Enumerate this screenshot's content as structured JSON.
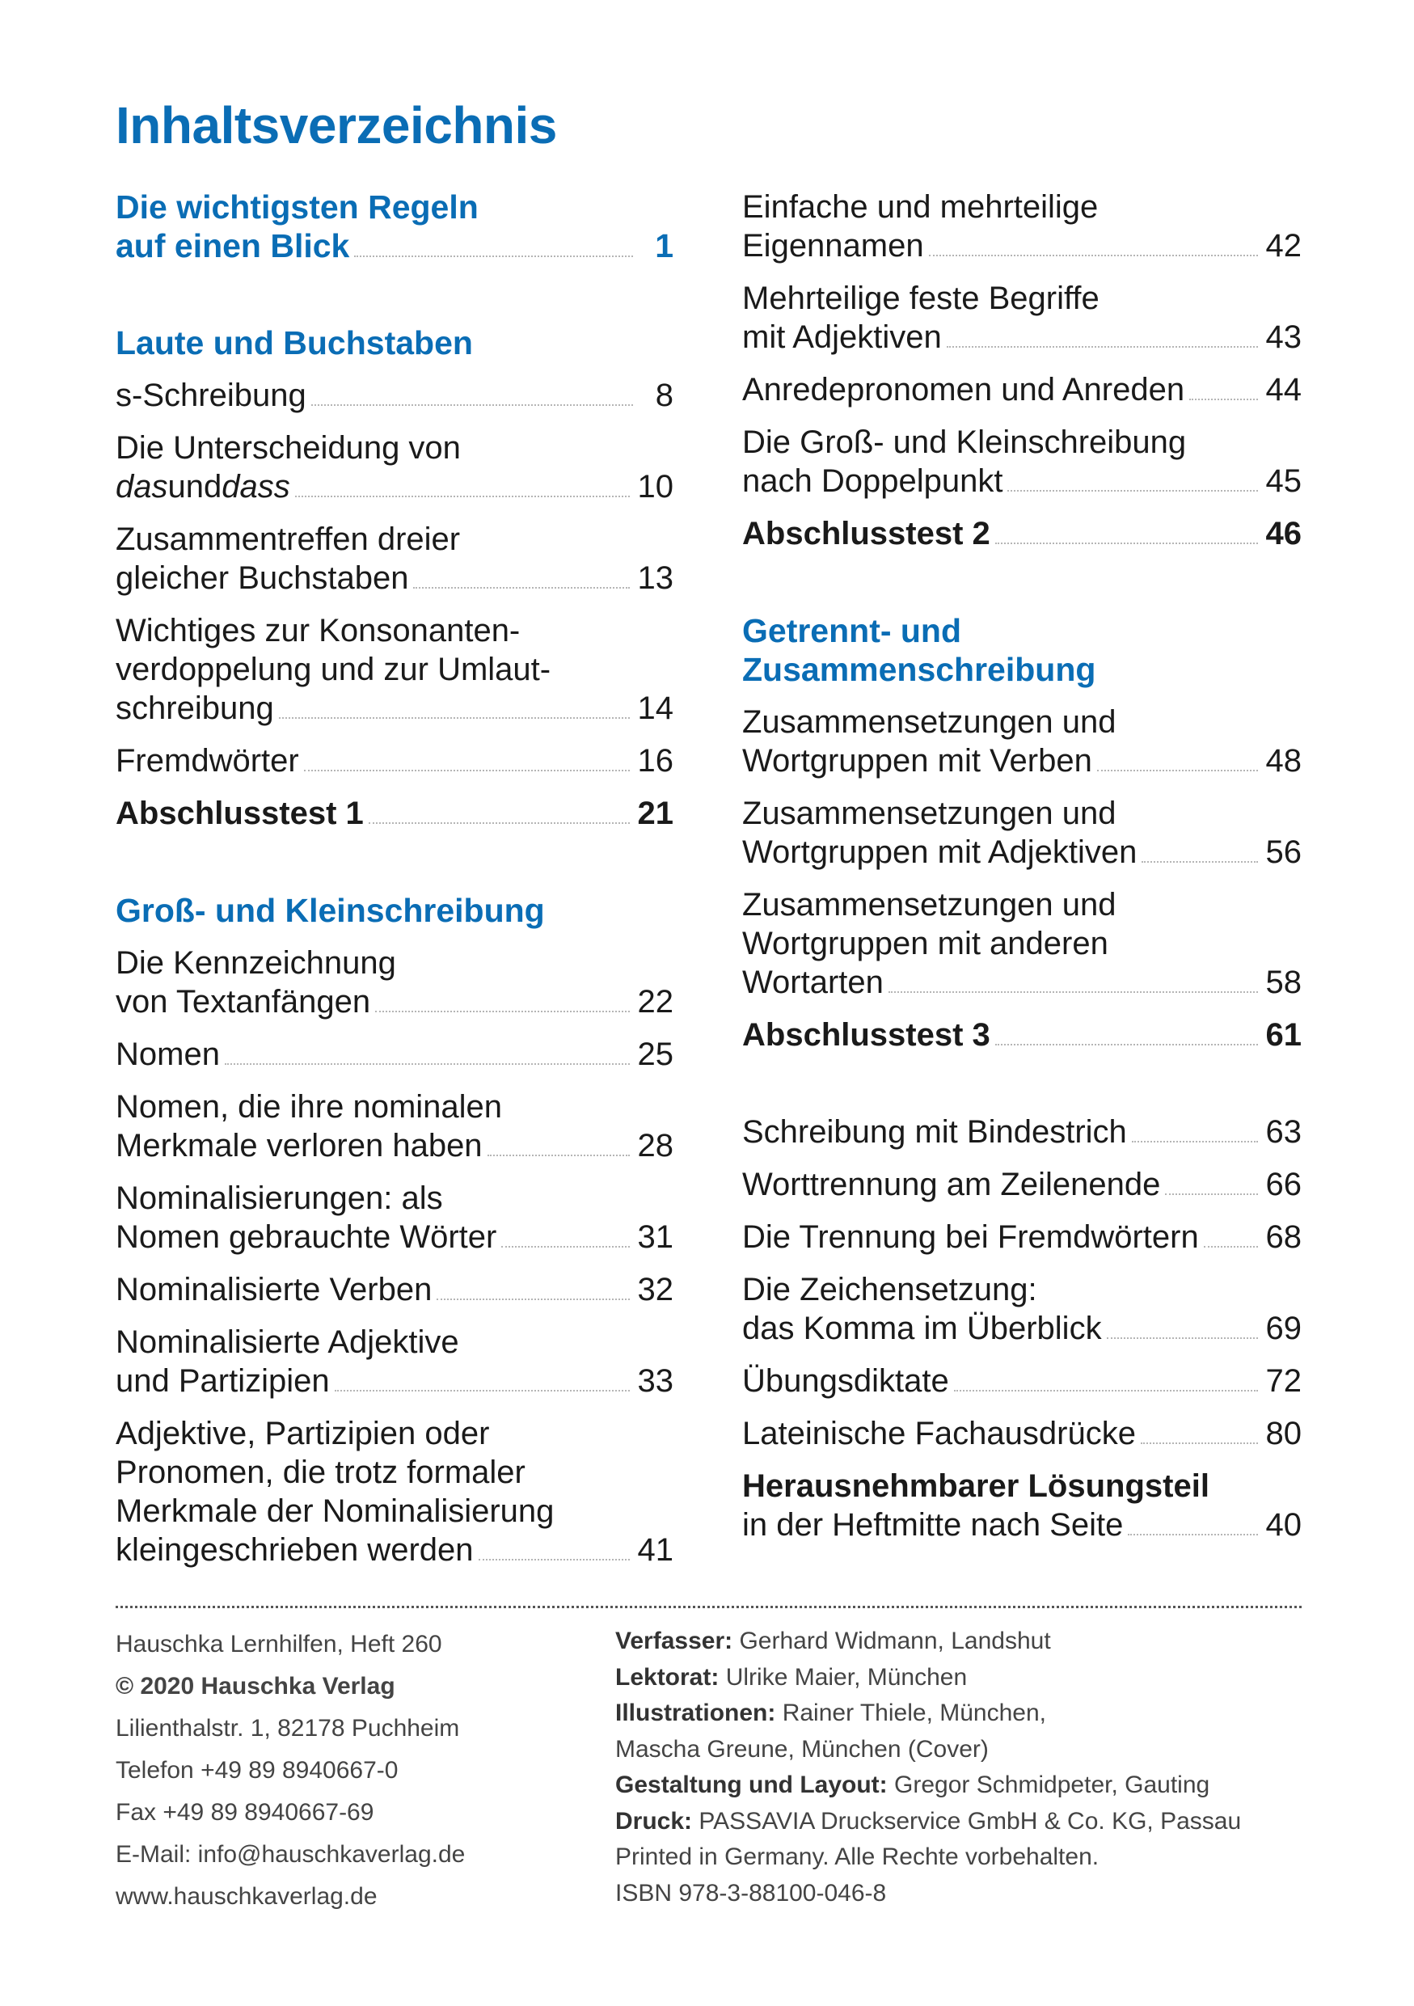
{
  "title": "Inhaltsverzeichnis",
  "columns": [
    [
      [
        {
          "style": "heading",
          "lines": [
            "Die wichtigsten Regeln",
            "auf einen Blick"
          ],
          "page": 1
        }
      ],
      [
        {
          "style": "heading",
          "lines": [
            "Laute und Buchstaben"
          ]
        },
        {
          "lines": [
            "s-Schreibung"
          ],
          "page": 8
        },
        {
          "lines": [
            "Die Unterscheidung von",
            [
              {
                "text": "das",
                "style": "italic"
              },
              {
                "text": " und "
              },
              {
                "text": "dass",
                "style": "italic"
              }
            ]
          ],
          "page": 10
        },
        {
          "lines": [
            "Zusammentreffen dreier",
            "gleicher Buchstaben"
          ],
          "page": 13
        },
        {
          "lines": [
            "Wichtiges zur Konsonanten-",
            "verdoppelung und zur Umlaut-",
            "schreibung"
          ],
          "page": 14
        },
        {
          "lines": [
            "Fremdwörter"
          ],
          "page": 16
        },
        {
          "style": "bold",
          "lines": [
            "Abschlusstest 1"
          ],
          "page": 21
        }
      ],
      [
        {
          "style": "heading",
          "lines": [
            "Groß- und Kleinschreibung"
          ]
        },
        {
          "lines": [
            "Die Kennzeichnung",
            "von Textanfängen"
          ],
          "page": 22
        },
        {
          "lines": [
            "Nomen"
          ],
          "page": 25
        },
        {
          "lines": [
            "Nomen, die ihre nominalen",
            "Merkmale verloren haben"
          ],
          "page": 28
        },
        {
          "lines": [
            "Nominalisierungen: als",
            "Nomen gebrauchte Wörter"
          ],
          "page": 31
        },
        {
          "lines": [
            "Nominalisierte Verben"
          ],
          "page": 32
        },
        {
          "lines": [
            "Nominalisierte Adjektive",
            "und Partizipien"
          ],
          "page": 33
        },
        {
          "lines": [
            "Adjektive, Partizipien oder",
            "Pronomen, die trotz formaler",
            "Merkmale der Nominalisierung",
            "kleingeschrieben werden"
          ],
          "page": 41
        }
      ]
    ],
    [
      [
        {
          "lines": [
            "Einfache und mehrteilige",
            "Eigennamen"
          ],
          "page": 42
        },
        {
          "lines": [
            "Mehrteilige feste Begriffe",
            "mit Adjektiven"
          ],
          "page": 43
        },
        {
          "lines": [
            "Anredepronomen und Anreden"
          ],
          "page": 44
        },
        {
          "lines": [
            "Die Groß- und Kleinschreibung",
            "nach Doppelpunkt"
          ],
          "page": 45
        },
        {
          "style": "bold",
          "lines": [
            "Abschlusstest 2"
          ],
          "page": 46
        }
      ],
      [
        {
          "style": "heading",
          "lines": [
            "Getrennt- und",
            "Zusammenschreibung"
          ]
        },
        {
          "lines": [
            "Zusammensetzungen und",
            "Wortgruppen mit Verben"
          ],
          "page": 48
        },
        {
          "lines": [
            "Zusammensetzungen und",
            "Wortgruppen mit Adjektiven"
          ],
          "page": 56
        },
        {
          "lines": [
            "Zusammensetzungen und",
            "Wortgruppen mit anderen",
            "Wortarten"
          ],
          "page": 58
        },
        {
          "style": "bold",
          "lines": [
            "Abschlusstest 3"
          ],
          "page": 61
        }
      ],
      [
        {
          "lines": [
            "Schreibung mit Bindestrich"
          ],
          "page": 63
        },
        {
          "lines": [
            "Worttrennung am Zeilenende"
          ],
          "page": 66
        },
        {
          "lines": [
            "Die Trennung bei Fremdwörtern"
          ],
          "page": 68
        },
        {
          "lines": [
            "Die Zeichensetzung:",
            "das Komma im Überblick"
          ],
          "page": 69
        },
        {
          "lines": [
            "Übungsdiktate"
          ],
          "page": 72
        },
        {
          "lines": [
            "Lateinische Fachausdrücke"
          ],
          "page": 80
        },
        {
          "lines": [
            [
              {
                "text": "Herausnehmbarer Lösungsteil",
                "style": "bold"
              }
            ],
            "in der Heftmitte nach Seite"
          ],
          "page": 40
        }
      ]
    ]
  ],
  "footer": {
    "left": [
      "Hauschka Lernhilfen, Heft 260",
      [
        {
          "text": "© 2020 Hauschka Verlag",
          "style": "bold"
        }
      ],
      "Lilienthalstr. 1, 82178 Puchheim",
      "Telefon +49 89 8940667-0",
      "Fax +49 89 8940667-69",
      "E-Mail: info@hauschkaverlag.de",
      "www.hauschkaverlag.de"
    ],
    "right": [
      {
        "label": "Verfasser:",
        "text": "Gerhard Widmann, Landshut"
      },
      {
        "label": "Lektorat:",
        "text": "Ulrike Maier, München"
      },
      {
        "label": "Illustrationen:",
        "text": "Rainer Thiele, München,"
      },
      {
        "text": "Mascha Greune, München (Cover)"
      },
      {
        "label": "Gestaltung und Layout:",
        "text": "Gregor Schmidpeter, Gauting"
      },
      {
        "label": "Druck:",
        "text": "PASSAVIA Druckservice GmbH & Co. KG, Passau"
      },
      {
        "text": "Printed in Germany. Alle Rechte vorbehalten."
      },
      {
        "text": "ISBN 978-3-88100-046-8"
      }
    ]
  }
}
